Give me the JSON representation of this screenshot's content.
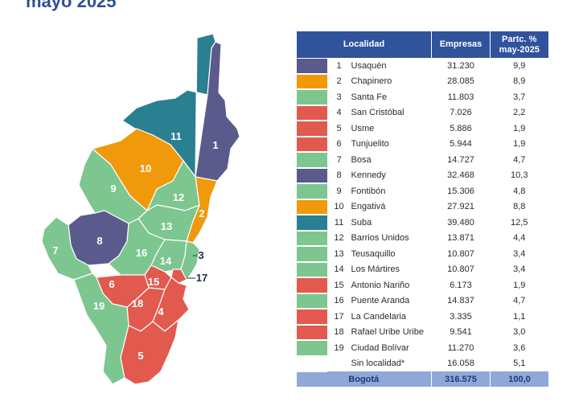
{
  "title": "mayo 2025",
  "table": {
    "headers": {
      "localidad": "Localidad",
      "empresas": "Empresas",
      "partc_line1": "Partc. %",
      "partc_line2": "may-2025"
    },
    "total": {
      "label": "Bogotá",
      "empresas": "316.575",
      "partc": "100,0"
    }
  },
  "colors": {
    "purple": "#5a5a8c",
    "orange": "#f0990b",
    "green": "#7dc690",
    "red": "#e2594e",
    "teal": "#2a7f91",
    "header": "#30539c",
    "total_bg": "#8fa8d8"
  },
  "chart_data": {
    "type": "table",
    "columns": [
      "Localidad",
      "Empresas",
      "Partc. % may-2025"
    ],
    "rows": [
      {
        "id": "1",
        "name": "Usaquén",
        "empresas": "31.230",
        "partc": "9,9",
        "color": "#5a5a8c"
      },
      {
        "id": "2",
        "name": "Chapinero",
        "empresas": "28.085",
        "partc": "8,9",
        "color": "#f0990b"
      },
      {
        "id": "3",
        "name": "Santa Fe",
        "empresas": "11.803",
        "partc": "3,7",
        "color": "#7dc690"
      },
      {
        "id": "4",
        "name": "San Cristóbal",
        "empresas": "7.026",
        "partc": "2,2",
        "color": "#e2594e"
      },
      {
        "id": "5",
        "name": "Usme",
        "empresas": "5.886",
        "partc": "1,9",
        "color": "#e2594e"
      },
      {
        "id": "6",
        "name": "Tunjuelito",
        "empresas": "5.944",
        "partc": "1,9",
        "color": "#e2594e"
      },
      {
        "id": "7",
        "name": "Bosa",
        "empresas": "14.727",
        "partc": "4,7",
        "color": "#7dc690"
      },
      {
        "id": "8",
        "name": "Kennedy",
        "empresas": "32.468",
        "partc": "10,3",
        "color": "#5a5a8c"
      },
      {
        "id": "9",
        "name": "Fontibón",
        "empresas": "15.306",
        "partc": "4,8",
        "color": "#7dc690"
      },
      {
        "id": "10",
        "name": "Engativá",
        "empresas": "27.921",
        "partc": "8,8",
        "color": "#f0990b"
      },
      {
        "id": "11",
        "name": "Suba",
        "empresas": "39.480",
        "partc": "12,5",
        "color": "#2a7f91"
      },
      {
        "id": "12",
        "name": "Barrios Unidos",
        "empresas": "13.871",
        "partc": "4,4",
        "color": "#7dc690"
      },
      {
        "id": "13",
        "name": "Teusaquillo",
        "empresas": "10.807",
        "partc": "3,4",
        "color": "#7dc690"
      },
      {
        "id": "14",
        "name": "Los Mártires",
        "empresas": "10.807",
        "partc": "3,4",
        "color": "#7dc690"
      },
      {
        "id": "15",
        "name": "Antonio Nariño",
        "empresas": "6.173",
        "partc": "1,9",
        "color": "#e2594e"
      },
      {
        "id": "16",
        "name": "Puente Aranda",
        "empresas": "14.837",
        "partc": "4,7",
        "color": "#7dc690"
      },
      {
        "id": "17",
        "name": "La Candelaria",
        "empresas": "3.335",
        "partc": "1,1",
        "color": "#e2594e"
      },
      {
        "id": "18",
        "name": "Rafael Uribe Uribe",
        "empresas": "9.541",
        "partc": "3,0",
        "color": "#e2594e"
      },
      {
        "id": "19",
        "name": "Ciudad Bolívar",
        "empresas": "11.270",
        "partc": "3,6",
        "color": "#7dc690"
      },
      {
        "id": "",
        "name": "Sin localidad*",
        "empresas": "16.058",
        "partc": "5,1",
        "color": ""
      }
    ],
    "total": {
      "name": "Bogotá",
      "empresas": "316.575",
      "partc": "100,0"
    }
  }
}
